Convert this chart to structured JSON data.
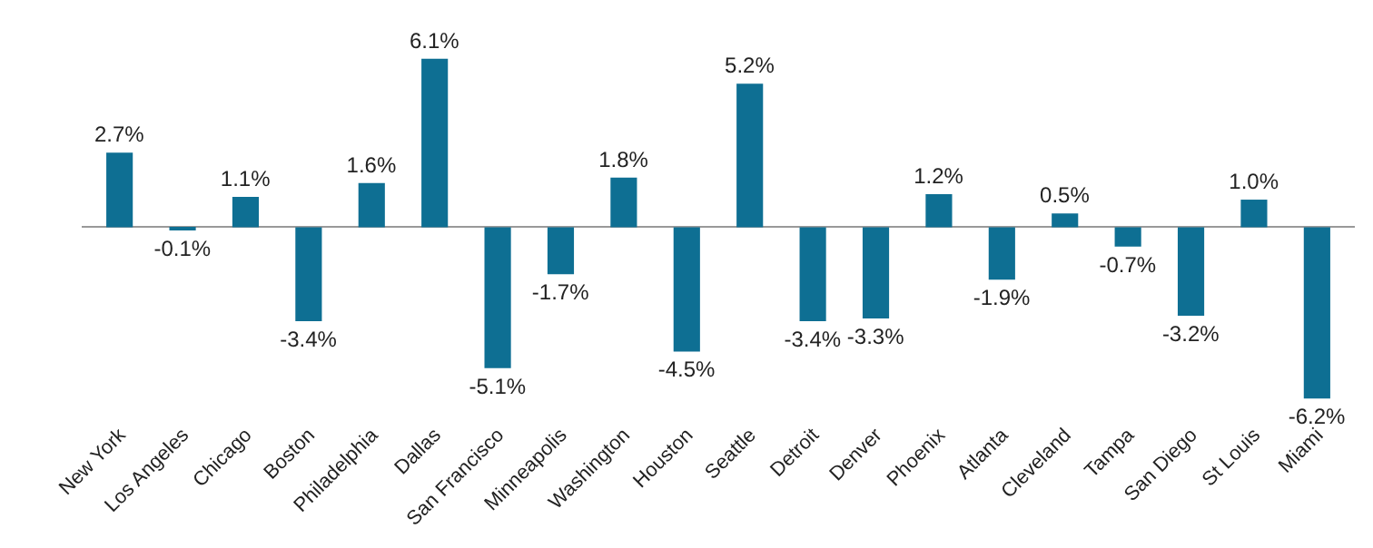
{
  "chart_data": {
    "type": "bar",
    "categories": [
      "New York",
      "Los Angeles",
      "Chicago",
      "Boston",
      "Philadelphia",
      "Dallas",
      "San Francisco",
      "Minneapolis",
      "Washington",
      "Houston",
      "Seattle",
      "Detroit",
      "Denver",
      "Phoenix",
      "Atlanta",
      "Cleveland",
      "Tampa",
      "San Diego",
      "St Louis",
      "Miami"
    ],
    "values": [
      2.7,
      -0.1,
      1.1,
      -3.4,
      1.6,
      6.1,
      -5.1,
      -1.7,
      1.8,
      -4.5,
      5.2,
      -3.4,
      -3.3,
      1.2,
      -1.9,
      0.5,
      -0.7,
      -3.2,
      1.0,
      -6.2
    ],
    "value_labels": [
      "2.7%",
      "-0.1%",
      "1.1%",
      "-3.4%",
      "1.6%",
      "6.1%",
      "-5.1%",
      "-1.7%",
      "1.8%",
      "-4.5%",
      "5.2%",
      "-3.4%",
      "-3.3%",
      "1.2%",
      "-1.9%",
      "0.5%",
      "-0.7%",
      "-3.2%",
      "1.0%",
      "-6.2%"
    ],
    "color": "#0e6f93",
    "tick_labels": "x"
  }
}
